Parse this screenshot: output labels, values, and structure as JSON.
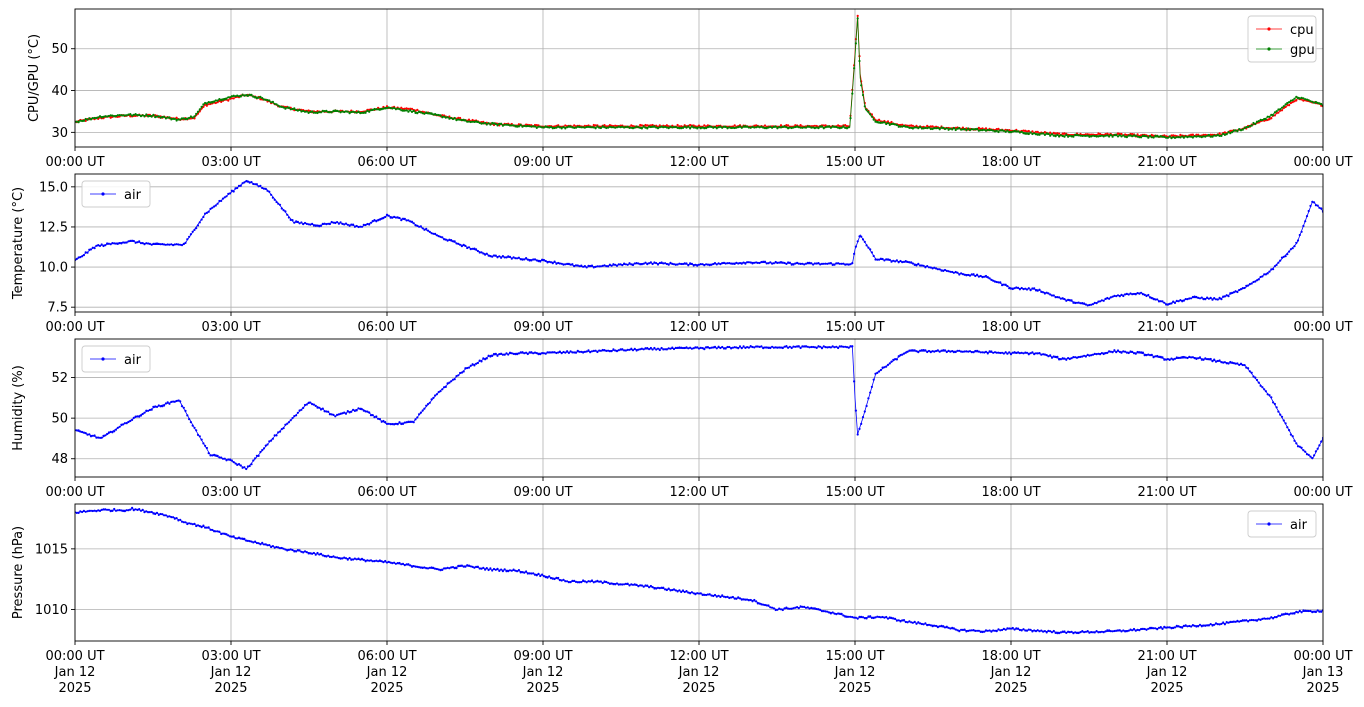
{
  "figure": {
    "xticks": [
      "00:00 UT",
      "03:00 UT",
      "06:00 UT",
      "09:00 UT",
      "12:00 UT",
      "15:00 UT",
      "18:00 UT",
      "21:00 UT",
      "00:00 UT"
    ],
    "xtick_dates": [
      [
        "Jan 12",
        "2025"
      ],
      [
        "Jan 12",
        "2025"
      ],
      [
        "Jan 12",
        "2025"
      ],
      [
        "Jan 12",
        "2025"
      ],
      [
        "Jan 12",
        "2025"
      ],
      [
        "Jan 12",
        "2025"
      ],
      [
        "Jan 12",
        "2025"
      ],
      [
        "Jan 12",
        "2025"
      ],
      [
        "Jan 13",
        "2025"
      ]
    ]
  },
  "chart_data": [
    {
      "type": "line",
      "ylabel": "CPU/GPU (°C)",
      "x_unit": "hours since 00:00 UT Jan 12 2025",
      "xlim": [
        0,
        24
      ],
      "ylim": [
        26.5,
        59.5
      ],
      "yticks": [
        30,
        40,
        50
      ],
      "grid": true,
      "legend": "top-right",
      "series": [
        {
          "name": "cpu",
          "color": "#ff0000",
          "x": [
            0,
            0.5,
            1,
            1.5,
            2,
            2.3,
            2.5,
            3,
            3.3,
            3.6,
            4,
            4.5,
            5,
            5.5,
            6,
            6.5,
            7,
            7.5,
            8,
            9,
            10,
            11,
            12,
            13,
            14,
            14.9,
            15,
            15.05,
            15.1,
            15.2,
            15.4,
            16,
            17,
            18,
            19,
            20,
            21,
            22,
            22.5,
            23,
            23.5,
            24
          ],
          "y": [
            32.5,
            33.5,
            34,
            34,
            33.2,
            33.5,
            36.5,
            38,
            39,
            38,
            36,
            35,
            35,
            35,
            36,
            35.5,
            34,
            33,
            32,
            31.5,
            31.5,
            31.5,
            31.5,
            31.5,
            31.5,
            31.5,
            49,
            58,
            44,
            36,
            33,
            31.5,
            31,
            30.5,
            29.5,
            29.5,
            29,
            29.5,
            31,
            33.5,
            38,
            36.5
          ]
        },
        {
          "name": "gpu",
          "color": "#008000",
          "x": [
            0,
            0.5,
            1,
            1.5,
            2,
            2.3,
            2.5,
            3,
            3.3,
            3.6,
            4,
            4.5,
            5,
            5.5,
            6,
            6.5,
            7,
            7.5,
            8,
            9,
            10,
            11,
            12,
            13,
            14,
            14.9,
            15,
            15.05,
            15.1,
            15.2,
            15.4,
            16,
            17,
            18,
            19,
            20,
            21,
            22,
            22.5,
            23,
            23.5,
            24
          ],
          "y": [
            32.5,
            33.8,
            34.2,
            34,
            33,
            33.8,
            37,
            38.5,
            39,
            38.2,
            36,
            34.8,
            35,
            34.7,
            36,
            35,
            34,
            32.7,
            32,
            31.2,
            31.2,
            31.2,
            31.2,
            31.2,
            31.2,
            31.2,
            48,
            57.5,
            43,
            35.5,
            32.7,
            31.2,
            30.8,
            30.2,
            29.2,
            29.2,
            28.8,
            29.2,
            31,
            34,
            38.5,
            36.5
          ]
        }
      ]
    },
    {
      "type": "line",
      "ylabel": "Temperature (°C)",
      "x_unit": "hours since 00:00 UT Jan 12 2025",
      "xlim": [
        0,
        24
      ],
      "ylim": [
        7.2,
        15.8
      ],
      "yticks": [
        7.5,
        10.0,
        12.5,
        15.0
      ],
      "ytick_labels": [
        "7.5",
        "10.0",
        "12.5",
        "15.0"
      ],
      "grid": true,
      "legend": "top-left",
      "series": [
        {
          "name": "air",
          "color": "#0000ff",
          "x": [
            0,
            0.4,
            0.8,
            1.1,
            1.5,
            2.1,
            2.5,
            2.9,
            3.3,
            3.7,
            4.2,
            4.7,
            5,
            5.5,
            6,
            6.4,
            7,
            8,
            9,
            9.8,
            11,
            12,
            13,
            14,
            14.95,
            15,
            15.1,
            15.4,
            16,
            17,
            17.5,
            18,
            18.5,
            19,
            19.5,
            20,
            20.5,
            21,
            21.5,
            22,
            22.5,
            23,
            23.5,
            23.8,
            24
          ],
          "y": [
            10.4,
            11.3,
            11.5,
            11.6,
            11.4,
            11.4,
            13.3,
            14.4,
            15.4,
            14.8,
            12.8,
            12.6,
            12.8,
            12.5,
            13.2,
            12.9,
            11.9,
            10.7,
            10.4,
            10.0,
            10.25,
            10.15,
            10.3,
            10.2,
            10.2,
            11.1,
            12.0,
            10.5,
            10.3,
            9.6,
            9.4,
            8.7,
            8.6,
            8.0,
            7.6,
            8.2,
            8.4,
            7.7,
            8.1,
            8.0,
            8.7,
            9.8,
            11.5,
            14.1,
            13.5
          ]
        }
      ]
    },
    {
      "type": "line",
      "ylabel": "Humidity (%)",
      "x_unit": "hours since 00:00 UT Jan 12 2025",
      "xlim": [
        0,
        24
      ],
      "ylim": [
        47.1,
        53.9
      ],
      "yticks": [
        48,
        50,
        52
      ],
      "grid": true,
      "legend": "top-left",
      "series": [
        {
          "name": "air",
          "color": "#0000ff",
          "x": [
            0,
            0.5,
            1,
            1.5,
            2,
            2.3,
            2.6,
            3,
            3.3,
            3.8,
            4.5,
            5,
            5.5,
            6,
            6.5,
            7,
            7.5,
            8,
            8.5,
            9,
            10,
            11,
            12,
            13,
            14,
            14.95,
            15,
            15.05,
            15.15,
            15.4,
            16,
            17,
            18,
            18.5,
            19,
            19.5,
            20,
            20.5,
            21,
            21.5,
            22,
            22.5,
            23,
            23.5,
            23.8,
            24
          ],
          "y": [
            49.4,
            49.0,
            49.8,
            50.5,
            50.9,
            49.5,
            48.2,
            47.9,
            47.5,
            49.0,
            50.8,
            50.1,
            50.5,
            49.7,
            49.8,
            51.3,
            52.4,
            53.1,
            53.2,
            53.2,
            53.3,
            53.4,
            53.45,
            53.5,
            53.5,
            53.5,
            51.0,
            49.2,
            50.0,
            52.2,
            53.3,
            53.3,
            53.2,
            53.2,
            52.9,
            53.1,
            53.3,
            53.2,
            52.9,
            53.0,
            52.8,
            52.6,
            51.0,
            48.7,
            48.0,
            49.0
          ]
        }
      ]
    },
    {
      "type": "line",
      "ylabel": "Pressure (hPa)",
      "x_unit": "hours since 00:00 UT Jan 12 2025",
      "xlim": [
        0,
        24
      ],
      "ylim": [
        1007.4,
        1018.7
      ],
      "yticks": [
        1010,
        1015
      ],
      "grid": true,
      "legend": "top-right",
      "series": [
        {
          "name": "air",
          "color": "#0000ff",
          "x": [
            0,
            0.5,
            1,
            1.1,
            1.5,
            1.9,
            2.1,
            2.5,
            3,
            3.5,
            4,
            4.5,
            5,
            6,
            6.5,
            7,
            7.5,
            8,
            8.5,
            9,
            9.5,
            10,
            11,
            12,
            13,
            13.5,
            14,
            14.5,
            15,
            15.5,
            16,
            16.5,
            17,
            17.5,
            18,
            19,
            20,
            21,
            22,
            23,
            23.5,
            24
          ],
          "y": [
            1018.0,
            1018.2,
            1018.2,
            1018.3,
            1018.0,
            1017.6,
            1017.2,
            1016.8,
            1016.0,
            1015.5,
            1015.0,
            1014.7,
            1014.3,
            1013.9,
            1013.6,
            1013.3,
            1013.6,
            1013.3,
            1013.2,
            1012.8,
            1012.3,
            1012.3,
            1011.9,
            1011.3,
            1010.8,
            1010.0,
            1010.2,
            1009.8,
            1009.3,
            1009.4,
            1009.0,
            1008.7,
            1008.3,
            1008.2,
            1008.4,
            1008.1,
            1008.2,
            1008.5,
            1008.8,
            1009.3,
            1009.8,
            1009.9
          ]
        }
      ]
    }
  ]
}
